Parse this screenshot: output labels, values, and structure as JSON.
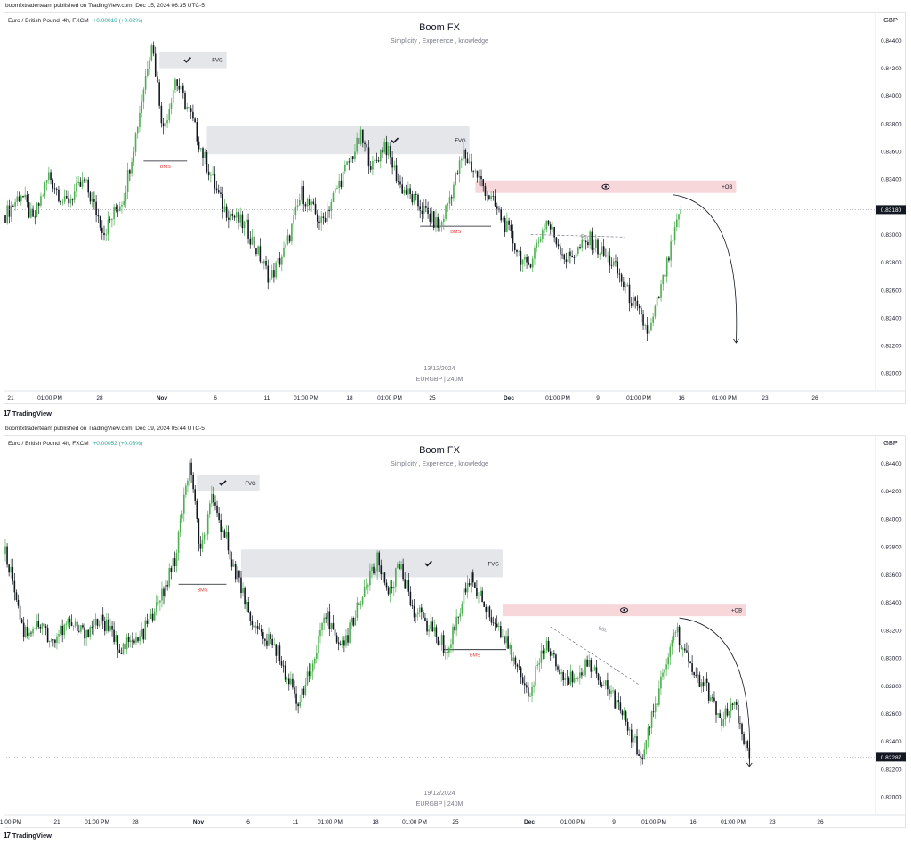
{
  "charts": [
    {
      "header": "boomfxtraderteam published on TradingView.com, Dec 15, 2024 06:35 UTC-5",
      "symbol": "Euro / British Pound, 4h, FXCM",
      "change": "+0.00018 (+0.02%)",
      "title": "Boom FX",
      "subtitle": "Simplicity , Experience , knowledge",
      "currency": "GBP",
      "date_label": "13/12/2024",
      "ticker_label": "EURGBP | 240M",
      "brand": "TradingView",
      "price_labels": [
        "0.84400",
        "0.84200",
        "0.84000",
        "0.83800",
        "0.83600",
        "0.83400",
        "0.83200",
        "0.83000",
        "0.82800",
        "0.82600",
        "0.82400",
        "0.82200",
        "0.82000"
      ],
      "last_price": "0.83180",
      "x_labels": [
        "21",
        "01:00 PM",
        "28",
        "Nov",
        "6",
        "11",
        "01:00 PM",
        "18",
        "01:00 PM",
        "25",
        "Dec",
        "01:00 PM",
        "9",
        "01:00 PM",
        "16",
        "01:00 PM",
        "23",
        "26"
      ],
      "annotations": {
        "fvg": "FVG",
        "bms": "BMS",
        "ssl": "SSL",
        "ob": "+OB"
      }
    },
    {
      "header": "boomfxtraderteam published on TradingView.com, Dec 19, 2024 05:44 UTC-5",
      "symbol": "Euro / British Pound, 4h, FXCM",
      "change": "+0.00052 (+0.06%)",
      "title": "Boom FX",
      "subtitle": "Simplicity , Experience , knowledge",
      "currency": "GBP",
      "date_label": "19/12/2024",
      "ticker_label": "EURGBP | 240M",
      "brand": "TradingView",
      "price_labels": [
        "0.84400",
        "0.84200",
        "0.84000",
        "0.83800",
        "0.83600",
        "0.83400",
        "0.83200",
        "0.83000",
        "0.82800",
        "0.82600",
        "0.82400",
        "0.82200",
        "0.82000"
      ],
      "last_price": "0.82287",
      "x_labels": [
        "1:00 PM",
        "21",
        "01:00 PM",
        "28",
        "Nov",
        "6",
        "11",
        "01:00 PM",
        "18",
        "01:00 PM",
        "25",
        "Dec",
        "01:00 PM",
        "9",
        "01:00 PM",
        "16",
        "01:00 PM",
        "23",
        "26"
      ],
      "annotations": {
        "fvg": "FVG",
        "bms": "BMS",
        "ssl": "SSL",
        "ob": "+OB"
      }
    }
  ],
  "chart_data": [
    {
      "type": "candlestick",
      "title": "Boom FX",
      "symbol": "EURGBP",
      "timeframe": "4h",
      "ylim": [
        0.8195,
        0.8455
      ],
      "waypoints": [
        {
          "t": 0,
          "p": 0.8314
        },
        {
          "t": 8,
          "p": 0.833
        },
        {
          "t": 14,
          "p": 0.8309
        },
        {
          "t": 22,
          "p": 0.8343
        },
        {
          "t": 30,
          "p": 0.8322
        },
        {
          "t": 40,
          "p": 0.8338
        },
        {
          "t": 50,
          "p": 0.8302
        },
        {
          "t": 60,
          "p": 0.8328
        },
        {
          "t": 66,
          "p": 0.8372
        },
        {
          "t": 74,
          "p": 0.844
        },
        {
          "t": 80,
          "p": 0.8375
        },
        {
          "t": 86,
          "p": 0.8412
        },
        {
          "t": 94,
          "p": 0.8385
        },
        {
          "t": 100,
          "p": 0.8358
        },
        {
          "t": 110,
          "p": 0.832
        },
        {
          "t": 122,
          "p": 0.8305
        },
        {
          "t": 134,
          "p": 0.8268
        },
        {
          "t": 142,
          "p": 0.829
        },
        {
          "t": 150,
          "p": 0.833
        },
        {
          "t": 160,
          "p": 0.8308
        },
        {
          "t": 170,
          "p": 0.834
        },
        {
          "t": 180,
          "p": 0.837
        },
        {
          "t": 186,
          "p": 0.8348
        },
        {
          "t": 192,
          "p": 0.8366
        },
        {
          "t": 200,
          "p": 0.8335
        },
        {
          "t": 210,
          "p": 0.832
        },
        {
          "t": 220,
          "p": 0.8305
        },
        {
          "t": 232,
          "p": 0.8358
        },
        {
          "t": 240,
          "p": 0.834
        },
        {
          "t": 252,
          "p": 0.831
        },
        {
          "t": 264,
          "p": 0.8275
        },
        {
          "t": 274,
          "p": 0.831
        },
        {
          "t": 284,
          "p": 0.8282
        },
        {
          "t": 296,
          "p": 0.8296
        },
        {
          "t": 308,
          "p": 0.8278
        },
        {
          "t": 318,
          "p": 0.825
        },
        {
          "t": 326,
          "p": 0.8228
        },
        {
          "t": 334,
          "p": 0.8272
        },
        {
          "t": 342,
          "p": 0.8318
        }
      ],
      "annotations": [
        {
          "label": "FVG",
          "zone": [
            0.8432,
            0.842
          ]
        },
        {
          "label": "FVG",
          "zone": [
            0.8378,
            0.8358
          ]
        },
        {
          "label": "BMS",
          "level": 0.8353
        },
        {
          "label": "BMS",
          "level": 0.8306
        },
        {
          "label": "SSL"
        },
        {
          "label": "+OB",
          "zone": [
            0.8339,
            0.833
          ]
        }
      ],
      "last_price": 0.8318
    },
    {
      "type": "candlestick",
      "title": "Boom FX",
      "symbol": "EURGBP",
      "timeframe": "4h",
      "ylim": [
        0.8195,
        0.8455
      ],
      "waypoints": [
        {
          "t": 0,
          "p": 0.8375
        },
        {
          "t": 4,
          "p": 0.8358
        },
        {
          "t": 10,
          "p": 0.8318
        },
        {
          "t": 18,
          "p": 0.8325
        },
        {
          "t": 26,
          "p": 0.8312
        },
        {
          "t": 34,
          "p": 0.8325
        },
        {
          "t": 42,
          "p": 0.8318
        },
        {
          "t": 52,
          "p": 0.8328
        },
        {
          "t": 62,
          "p": 0.8308
        },
        {
          "t": 72,
          "p": 0.8312
        },
        {
          "t": 82,
          "p": 0.8335
        },
        {
          "t": 92,
          "p": 0.837
        },
        {
          "t": 100,
          "p": 0.844
        },
        {
          "t": 106,
          "p": 0.8375
        },
        {
          "t": 112,
          "p": 0.8412
        },
        {
          "t": 120,
          "p": 0.8385
        },
        {
          "t": 126,
          "p": 0.8358
        },
        {
          "t": 136,
          "p": 0.832
        },
        {
          "t": 148,
          "p": 0.8305
        },
        {
          "t": 158,
          "p": 0.8268
        },
        {
          "t": 166,
          "p": 0.829
        },
        {
          "t": 174,
          "p": 0.833
        },
        {
          "t": 184,
          "p": 0.8308
        },
        {
          "t": 192,
          "p": 0.834
        },
        {
          "t": 202,
          "p": 0.837
        },
        {
          "t": 208,
          "p": 0.8348
        },
        {
          "t": 214,
          "p": 0.8366
        },
        {
          "t": 222,
          "p": 0.8335
        },
        {
          "t": 232,
          "p": 0.832
        },
        {
          "t": 240,
          "p": 0.8305
        },
        {
          "t": 252,
          "p": 0.8358
        },
        {
          "t": 260,
          "p": 0.834
        },
        {
          "t": 272,
          "p": 0.831
        },
        {
          "t": 284,
          "p": 0.8275
        },
        {
          "t": 294,
          "p": 0.831
        },
        {
          "t": 304,
          "p": 0.8282
        },
        {
          "t": 316,
          "p": 0.8296
        },
        {
          "t": 328,
          "p": 0.8278
        },
        {
          "t": 338,
          "p": 0.825
        },
        {
          "t": 346,
          "p": 0.8228
        },
        {
          "t": 354,
          "p": 0.8272
        },
        {
          "t": 364,
          "p": 0.8322
        },
        {
          "t": 372,
          "p": 0.8292
        },
        {
          "t": 380,
          "p": 0.828
        },
        {
          "t": 388,
          "p": 0.8255
        },
        {
          "t": 396,
          "p": 0.8265
        },
        {
          "t": 404,
          "p": 0.8228
        }
      ],
      "annotations": [
        {
          "label": "FVG",
          "zone": [
            0.8432,
            0.842
          ]
        },
        {
          "label": "FVG",
          "zone": [
            0.8378,
            0.8358
          ]
        },
        {
          "label": "BMS",
          "level": 0.8353
        },
        {
          "label": "BMS",
          "level": 0.8306
        },
        {
          "label": "SSL"
        },
        {
          "label": "+OB",
          "zone": [
            0.8339,
            0.833
          ]
        }
      ],
      "last_price": 0.82287
    }
  ]
}
